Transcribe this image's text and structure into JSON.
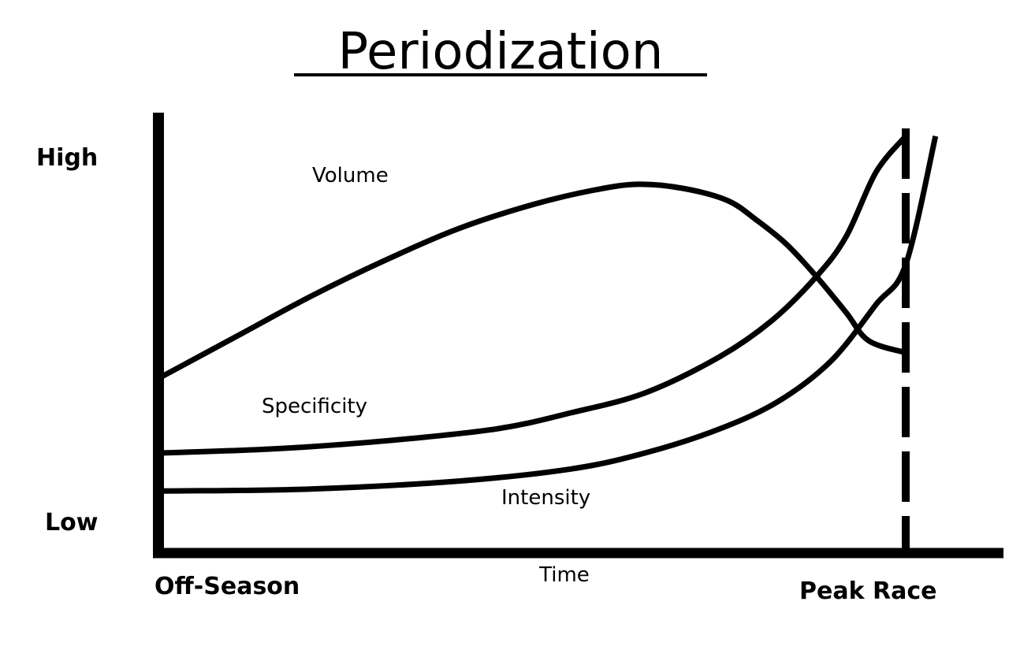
{
  "chart_data": {
    "type": "line",
    "title": "Periodization",
    "xlabel": "Time",
    "x_tick_labels": [
      "Off-Season",
      "Peak Race"
    ],
    "y_tick_labels": [
      "Low",
      "High"
    ],
    "xlim": [
      0,
      100
    ],
    "ylim": [
      0,
      100
    ],
    "grid": false,
    "legend": "none",
    "series": [
      {
        "name": "Volume",
        "x": [
          0,
          10,
          20,
          30,
          40,
          50,
          58,
          64,
          70,
          76,
          80,
          84,
          88,
          92,
          95,
          100
        ],
        "y": [
          42,
          52,
          62,
          71,
          79,
          85,
          88.5,
          90,
          89,
          86,
          81,
          75,
          67,
          58,
          51,
          48
        ]
      },
      {
        "name": "Specificity",
        "x": [
          0,
          15,
          30,
          45,
          55,
          65,
          75,
          82,
          88,
          92,
          96,
          100
        ],
        "y": [
          23,
          24,
          26,
          29,
          33,
          38,
          47,
          56,
          67,
          77,
          93,
          102
        ]
      },
      {
        "name": "Intensity",
        "x": [
          0,
          20,
          40,
          55,
          65,
          75,
          83,
          90,
          96,
          100,
          104
        ],
        "y": [
          13.5,
          14,
          16,
          19,
          23,
          29,
          36,
          46,
          60,
          70,
          102
        ]
      }
    ],
    "vertical_marker": {
      "x": 100,
      "style": "dashed"
    }
  }
}
